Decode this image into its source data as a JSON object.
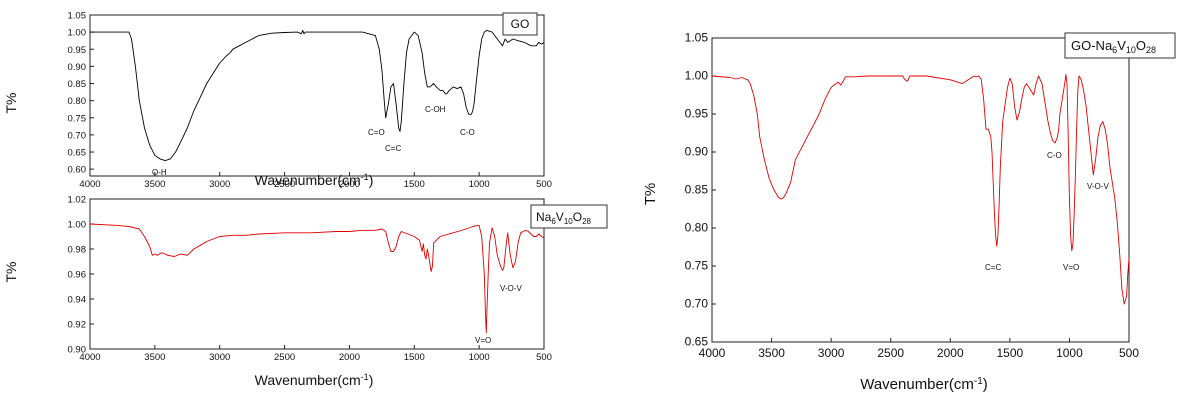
{
  "chart_data": [
    {
      "type": "line",
      "title": "GO",
      "xlabel": "Wavenumber(cm⁻¹)",
      "ylabel": "T%",
      "xlim": [
        4000,
        500
      ],
      "ylim": [
        0.58,
        1.05
      ],
      "x_ticks": [
        "4000",
        "3500",
        "3000",
        "2500",
        "2000",
        "1500",
        "1000",
        "500"
      ],
      "y_ticks": [
        "0.60",
        "0.65",
        "0.70",
        "0.75",
        "0.80",
        "0.85",
        "0.90",
        "0.95",
        "1.00",
        "1.05"
      ],
      "color": "#000000",
      "series": [
        {
          "x": [
            4000,
            3800,
            3700,
            3680,
            3650,
            3620,
            3580,
            3540,
            3500,
            3460,
            3420,
            3380,
            3340,
            3300,
            3250,
            3200,
            3150,
            3100,
            3050,
            3000,
            2950,
            2920,
            2900,
            2850,
            2800,
            2700,
            2600,
            2500,
            2400,
            2370,
            2360,
            2350,
            2340,
            2300,
            2200,
            2100,
            2000,
            1900,
            1850,
            1800,
            1770,
            1750,
            1730,
            1720,
            1700,
            1680,
            1660,
            1640,
            1620,
            1610,
            1600,
            1580,
            1560,
            1540,
            1500,
            1470,
            1440,
            1420,
            1400,
            1380,
            1350,
            1330,
            1300,
            1280,
            1260,
            1250,
            1230,
            1200,
            1170,
            1140,
            1120,
            1100,
            1080,
            1060,
            1050,
            1040,
            1020,
            1000,
            980,
            960,
            940,
            900,
            860,
            840,
            820,
            800,
            780,
            760,
            740,
            700,
            650,
            600,
            560,
            540,
            520,
            500
          ],
          "y": [
            1.0,
            1.0,
            1.0,
            0.98,
            0.9,
            0.8,
            0.72,
            0.67,
            0.64,
            0.63,
            0.625,
            0.63,
            0.65,
            0.68,
            0.72,
            0.77,
            0.81,
            0.85,
            0.88,
            0.91,
            0.93,
            0.94,
            0.95,
            0.96,
            0.97,
            0.99,
            0.997,
            0.999,
            1.0,
            0.995,
            1.005,
            0.995,
            1.0,
            1.0,
            1.0,
            1.0,
            1.0,
            1.0,
            0.995,
            0.99,
            0.95,
            0.89,
            0.79,
            0.75,
            0.79,
            0.84,
            0.85,
            0.79,
            0.72,
            0.71,
            0.74,
            0.85,
            0.94,
            0.98,
            1.0,
            0.99,
            0.94,
            0.88,
            0.84,
            0.84,
            0.85,
            0.84,
            0.83,
            0.83,
            0.82,
            0.82,
            0.83,
            0.84,
            0.835,
            0.84,
            0.82,
            0.78,
            0.76,
            0.76,
            0.77,
            0.79,
            0.86,
            0.93,
            0.98,
            1.0,
            1.005,
            1.0,
            0.98,
            0.97,
            0.96,
            0.98,
            0.97,
            0.975,
            0.98,
            0.975,
            0.97,
            0.96,
            0.96,
            0.97,
            0.965,
            0.97
          ]
        }
      ],
      "annotations": [
        "O-H",
        "C=O",
        "C=C",
        "C-OH",
        "C-O"
      ]
    },
    {
      "type": "line",
      "title": "Na6V10O28",
      "title_parts": [
        "Na",
        "6",
        "V",
        "10",
        "O",
        "28"
      ],
      "xlabel": "Wavenumber(cm⁻¹)",
      "ylabel": "T%",
      "xlim": [
        4000,
        500
      ],
      "ylim": [
        0.9,
        1.02
      ],
      "x_ticks": [
        "4000",
        "3500",
        "3000",
        "2500",
        "2000",
        "1500",
        "1000",
        "500"
      ],
      "y_ticks": [
        "0.90",
        "0.92",
        "0.94",
        "0.96",
        "0.98",
        "1.00",
        "1.02"
      ],
      "color": "#e00000",
      "series": [
        {
          "x": [
            4000,
            3800,
            3700,
            3620,
            3580,
            3540,
            3520,
            3500,
            3480,
            3450,
            3420,
            3400,
            3350,
            3300,
            3250,
            3200,
            3150,
            3100,
            3000,
            2900,
            2800,
            2700,
            2500,
            2300,
            2100,
            2000,
            1900,
            1800,
            1750,
            1720,
            1700,
            1680,
            1660,
            1640,
            1620,
            1600,
            1550,
            1500,
            1460,
            1440,
            1430,
            1420,
            1410,
            1400,
            1390,
            1380,
            1370,
            1360,
            1350,
            1300,
            1200,
            1100,
            1050,
            1000,
            980,
            960,
            950,
            945,
            940,
            930,
            920,
            900,
            880,
            860,
            840,
            830,
            820,
            810,
            800,
            790,
            780,
            760,
            740,
            720,
            700,
            680,
            660,
            640,
            620,
            600,
            580,
            560,
            540,
            520,
            500
          ],
          "y": [
            1.0,
            0.999,
            0.998,
            0.996,
            0.99,
            0.982,
            0.975,
            0.976,
            0.975,
            0.977,
            0.976,
            0.975,
            0.974,
            0.976,
            0.975,
            0.98,
            0.983,
            0.986,
            0.99,
            0.991,
            0.991,
            0.992,
            0.993,
            0.993,
            0.994,
            0.994,
            0.995,
            0.995,
            0.996,
            0.994,
            0.985,
            0.978,
            0.978,
            0.982,
            0.99,
            0.994,
            0.992,
            0.99,
            0.987,
            0.978,
            0.984,
            0.975,
            0.972,
            0.98,
            0.975,
            0.968,
            0.962,
            0.966,
            0.985,
            0.99,
            0.993,
            0.996,
            0.998,
            0.999,
            0.99,
            0.96,
            0.925,
            0.913,
            0.93,
            0.96,
            0.985,
            0.997,
            0.99,
            0.975,
            0.968,
            0.965,
            0.963,
            0.965,
            0.975,
            0.985,
            0.993,
            0.975,
            0.965,
            0.97,
            0.985,
            0.993,
            0.994,
            0.995,
            0.994,
            0.992,
            0.99,
            0.99,
            0.992,
            0.99,
            0.989
          ]
        }
      ],
      "annotations": [
        "V-O-V",
        "V=O"
      ]
    },
    {
      "type": "line",
      "title": "GO-Na6V10O28",
      "title_parts": [
        "GO-Na",
        "6",
        "V",
        "10",
        "O",
        "28"
      ],
      "xlabel": "Wavenumber(cm⁻¹)",
      "ylabel": "T%",
      "xlim": [
        4000,
        500
      ],
      "ylim": [
        0.65,
        1.05
      ],
      "x_ticks": [
        "4000",
        "3500",
        "3000",
        "2500",
        "2000",
        "1500",
        "1000",
        "500"
      ],
      "y_ticks": [
        "0.65",
        "0.70",
        "0.75",
        "0.80",
        "0.85",
        "0.90",
        "0.95",
        "1.00",
        "1.05"
      ],
      "color": "#e00000",
      "series": [
        {
          "x": [
            4000,
            3850,
            3800,
            3750,
            3700,
            3680,
            3650,
            3620,
            3600,
            3560,
            3520,
            3480,
            3440,
            3420,
            3400,
            3380,
            3340,
            3300,
            3250,
            3200,
            3150,
            3100,
            3050,
            3000,
            2960,
            2940,
            2920,
            2900,
            2880,
            2850,
            2800,
            2700,
            2500,
            2400,
            2380,
            2360,
            2340,
            2300,
            2200,
            2000,
            1900,
            1850,
            1800,
            1780,
            1760,
            1740,
            1720,
            1700,
            1680,
            1660,
            1650,
            1640,
            1630,
            1620,
            1610,
            1600,
            1590,
            1580,
            1560,
            1520,
            1500,
            1480,
            1460,
            1440,
            1420,
            1400,
            1380,
            1360,
            1340,
            1300,
            1280,
            1260,
            1230,
            1200,
            1180,
            1160,
            1140,
            1120,
            1100,
            1090,
            1080,
            1060,
            1040,
            1030,
            1020,
            1010,
            1000,
            990,
            980,
            970,
            960,
            950,
            940,
            930,
            920,
            900,
            880,
            860,
            840,
            820,
            800,
            780,
            760,
            740,
            720,
            700,
            680,
            660,
            640,
            620,
            600,
            580,
            560,
            540,
            520,
            510,
            500
          ],
          "y": [
            1.0,
            0.998,
            0.996,
            0.998,
            0.995,
            0.99,
            0.975,
            0.95,
            0.92,
            0.89,
            0.865,
            0.85,
            0.84,
            0.838,
            0.84,
            0.845,
            0.86,
            0.89,
            0.905,
            0.92,
            0.935,
            0.95,
            0.97,
            0.985,
            0.99,
            0.992,
            0.988,
            0.993,
            0.999,
            0.999,
            0.999,
            1.0,
            1.0,
            1.0,
            0.995,
            0.993,
            1.0,
            1.0,
            1.0,
            0.995,
            0.99,
            0.995,
            1.0,
            0.999,
            1.0,
            0.995,
            0.97,
            0.93,
            0.93,
            0.92,
            0.9,
            0.86,
            0.82,
            0.79,
            0.776,
            0.79,
            0.83,
            0.88,
            0.94,
            0.985,
            0.997,
            0.99,
            0.96,
            0.942,
            0.952,
            0.97,
            0.985,
            0.99,
            0.985,
            0.975,
            0.99,
            1.0,
            0.99,
            0.96,
            0.94,
            0.925,
            0.915,
            0.912,
            0.92,
            0.93,
            0.95,
            0.97,
            0.99,
            1.002,
            0.99,
            0.92,
            0.84,
            0.79,
            0.77,
            0.78,
            0.82,
            0.87,
            0.93,
            0.98,
            1.0,
            0.995,
            0.98,
            0.96,
            0.93,
            0.9,
            0.87,
            0.89,
            0.92,
            0.935,
            0.94,
            0.93,
            0.91,
            0.88,
            0.86,
            0.84,
            0.81,
            0.77,
            0.72,
            0.7,
            0.71,
            0.74,
            0.76
          ]
        }
      ],
      "annotations": [
        "C-O",
        "V-O-V",
        "C=C",
        "V=O"
      ]
    }
  ]
}
